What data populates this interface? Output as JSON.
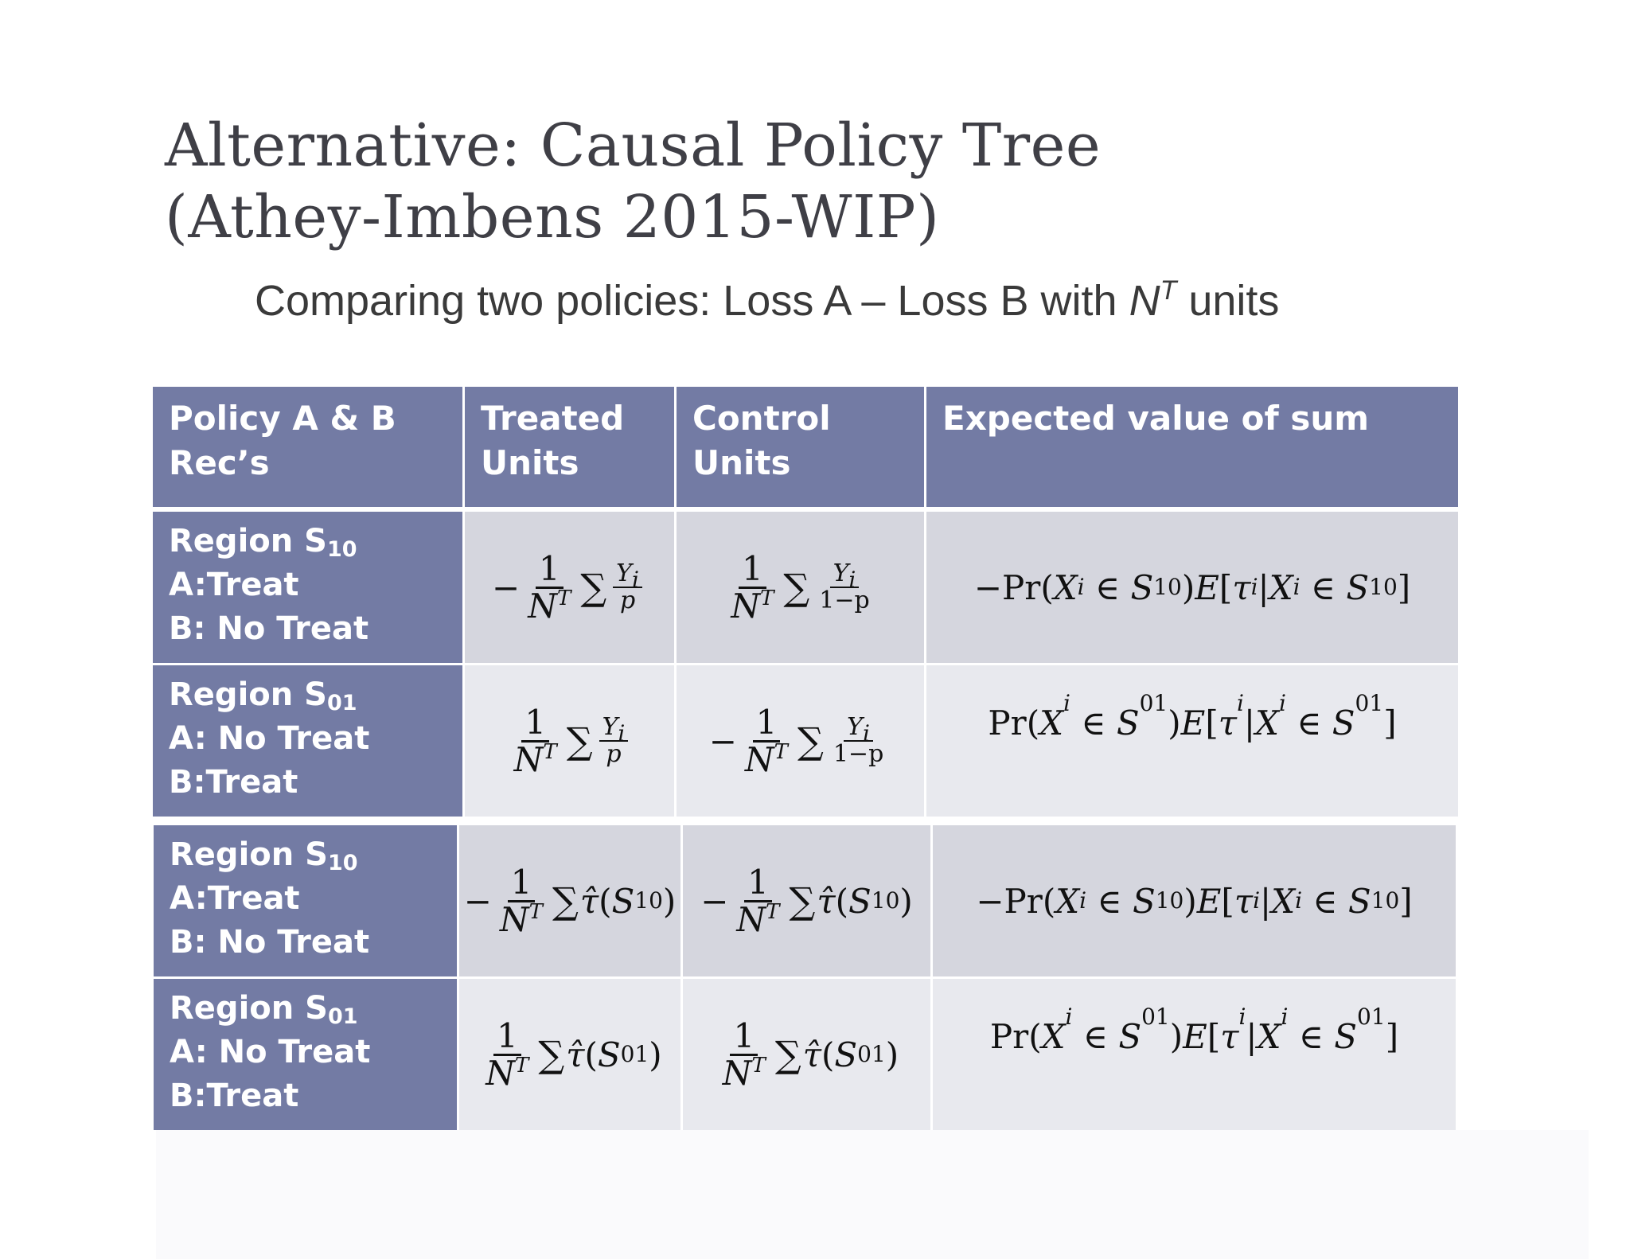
{
  "slide": {
    "title_line1": "Alternative: Causal Policy Tree",
    "title_line2": "(Athey-Imbens 2015-WIP)",
    "subtitle_text": "Comparing two policies: Loss A – Loss B with",
    "subtitle_var": "N",
    "subtitle_sup": "T",
    "subtitle_tail": "units"
  },
  "table": {
    "headers": [
      {
        "line1": "Policy A & B",
        "line2": "Rec’s"
      },
      {
        "line1": "Treated",
        "line2": "Units"
      },
      {
        "line1": "Control",
        "line2": "Units"
      },
      {
        "line1": "Expected value of sum",
        "line2": ""
      }
    ],
    "rows": [
      {
        "region": "Region S",
        "region_sub": "10",
        "a": "A:Treat",
        "b": "B: No Treat"
      },
      {
        "region": "Region S",
        "region_sub": "01",
        "a": "A: No Treat",
        "b": "B:Treat"
      },
      {
        "region": "Region S",
        "region_sub": "10",
        "a": "A:Treat",
        "b": "B: No Treat"
      },
      {
        "region": "Region S",
        "region_sub": "01",
        "a": "A: No Treat",
        "b": "B:Treat"
      }
    ],
    "math": {
      "one": "1",
      "N": "N",
      "T": "T",
      "Yi": "Y",
      "i": "i",
      "p": "p",
      "one_minus_p": "1−p",
      "sum": "∑",
      "minus": "−",
      "tau_hat": "τ̂",
      "S": "S",
      "sub10": "10",
      "sub01": "01",
      "pr": "Pr",
      "X": "X",
      "in": "∈",
      "E": "E",
      "tau": "τ"
    }
  }
}
